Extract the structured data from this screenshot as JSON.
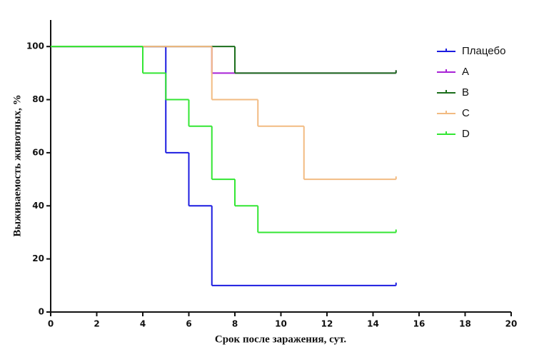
{
  "chart_data": {
    "type": "line",
    "drawstyle": "steps-post",
    "xlabel": "Срок после заражения, сут.",
    "ylabel": "Выживаемость животных, %",
    "xlim": [
      0,
      20
    ],
    "xticks": [
      0,
      2,
      4,
      6,
      8,
      10,
      12,
      14,
      16,
      18,
      20
    ],
    "ylim": [
      0,
      110
    ],
    "yticks": [
      0,
      20,
      40,
      60,
      80,
      100
    ],
    "legend": "upper right",
    "series": [
      {
        "name": "Плацебо",
        "color": "#1c1ce0",
        "x": [
          0,
          5,
          6,
          7,
          15
        ],
        "values": [
          100,
          60,
          40,
          10,
          10
        ]
      },
      {
        "name": "A",
        "color": "#a822d6",
        "x": [
          0,
          7,
          15
        ],
        "values": [
          100,
          90,
          90
        ]
      },
      {
        "name": "B",
        "color": "#1b6e1b",
        "x": [
          0,
          8,
          15
        ],
        "values": [
          100,
          90,
          90
        ]
      },
      {
        "name": "C",
        "color": "#f2bb82",
        "x": [
          0,
          7,
          9,
          11,
          15
        ],
        "values": [
          100,
          80,
          70,
          50,
          50
        ]
      },
      {
        "name": "D",
        "color": "#33e633",
        "x": [
          0,
          4,
          5,
          6,
          7,
          8,
          9,
          15
        ],
        "values": [
          100,
          90,
          80,
          70,
          50,
          40,
          30,
          30
        ]
      }
    ]
  }
}
